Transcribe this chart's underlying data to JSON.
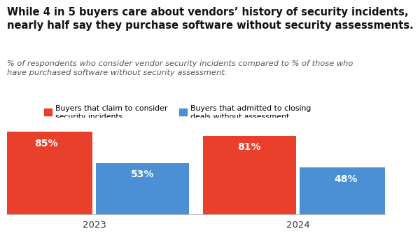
{
  "title_line1": "While 4 in 5 buyers care about vendors’ history of security incidents,",
  "title_line2": "nearly half say they purchase software without security assessments.",
  "subtitle": "% of respondents who consider vendor security incidents compared to % of those who\nhave purchased software without security assessment.",
  "years": [
    "2023",
    "2024"
  ],
  "red_values": [
    85,
    81
  ],
  "blue_values": [
    53,
    48
  ],
  "red_color": "#E8402A",
  "blue_color": "#4B8FD5",
  "legend_red": "Buyers that claim to consider\nsecurity incidents",
  "legend_blue": "Buyers that admitted to closing\ndeals without assessment",
  "background_color": "#FFFFFF",
  "bar_width": 0.32,
  "ylim": [
    0,
    100
  ],
  "label_fontsize": 10,
  "title_fontsize": 10.5,
  "subtitle_fontsize": 8.2,
  "legend_fontsize": 7.8,
  "xtick_fontsize": 9.5
}
